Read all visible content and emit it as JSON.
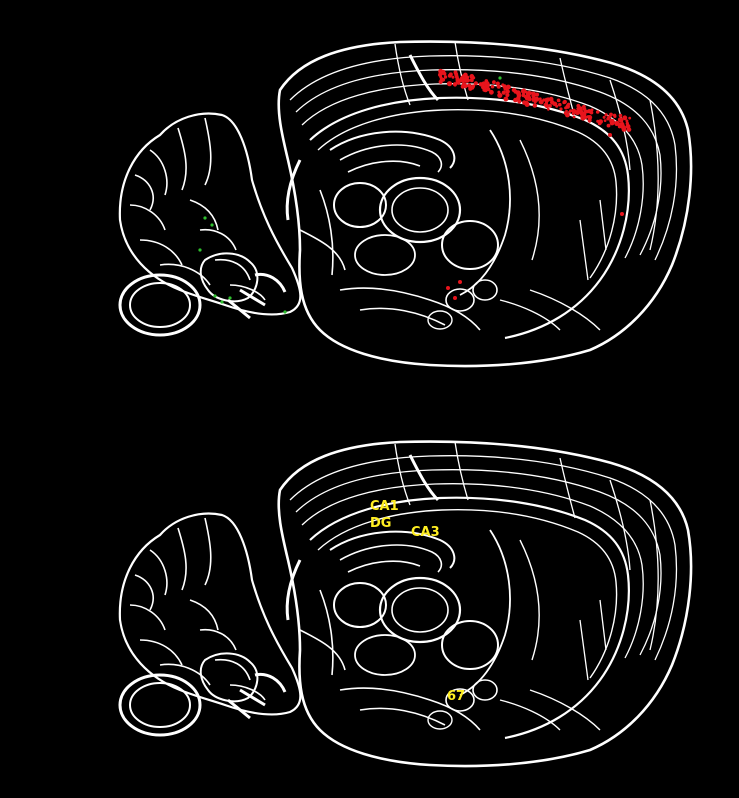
{
  "figure": {
    "colors": {
      "background": "#000000",
      "outline": "#ffffff",
      "signal_red": "#e8141c",
      "signal_green": "#2fbf2f",
      "label": "#ffee22"
    },
    "panels": [
      {
        "name": "labeled-expression-section",
        "signals": [
          "red",
          "green"
        ]
      },
      {
        "name": "annotated-atlas-section",
        "signals": []
      }
    ],
    "labels": {
      "ca1": "CA1",
      "dg": "DG",
      "ca3": "CA3",
      "region_67": "67"
    }
  }
}
